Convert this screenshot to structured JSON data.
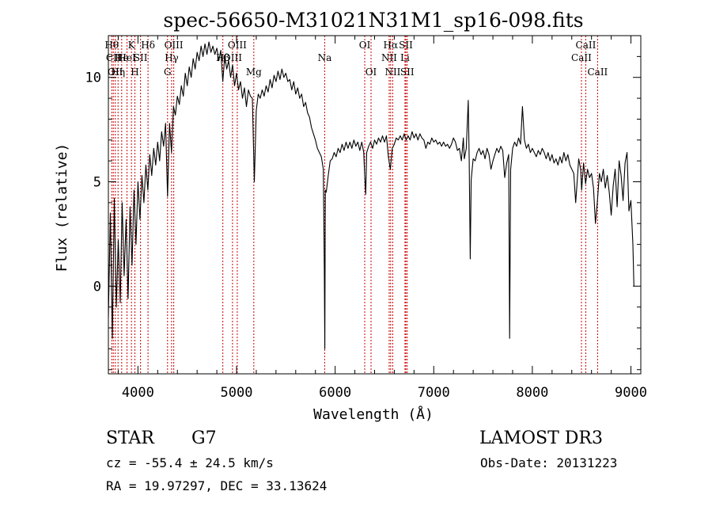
{
  "chart_data": {
    "type": "line",
    "title": "spec-56650-M31021N31M1_sp16-098.fits",
    "xlabel": "Wavelength (Å)",
    "ylabel": "Flux (relative)",
    "xlim": [
      3700,
      9100
    ],
    "ylim": [
      -4.2,
      12
    ],
    "x_ticks": [
      4000,
      5000,
      6000,
      7000,
      8000,
      9000
    ],
    "y_ticks": [
      0,
      5,
      10
    ],
    "x_minor_step": 200,
    "y_minor_step": 1,
    "grid": false,
    "series": [
      {
        "points": [
          [
            3700,
            -1.5
          ],
          [
            3720,
            3.5
          ],
          [
            3740,
            -2.5
          ],
          [
            3760,
            4.2
          ],
          [
            3780,
            -1.0
          ],
          [
            3800,
            2.2
          ],
          [
            3820,
            -0.8
          ],
          [
            3840,
            4.0
          ],
          [
            3860,
            0.5
          ],
          [
            3880,
            3.2
          ],
          [
            3900,
            -0.6
          ],
          [
            3920,
            3.8
          ],
          [
            3940,
            1.0
          ],
          [
            3960,
            4.6
          ],
          [
            3980,
            2.0
          ],
          [
            4000,
            5.0
          ],
          [
            4020,
            3.2
          ],
          [
            4040,
            5.3
          ],
          [
            4060,
            4.0
          ],
          [
            4080,
            5.8
          ],
          [
            4100,
            4.6
          ],
          [
            4120,
            6.3
          ],
          [
            4140,
            5.3
          ],
          [
            4160,
            6.6
          ],
          [
            4180,
            5.8
          ],
          [
            4200,
            6.9
          ],
          [
            4220,
            6.0
          ],
          [
            4240,
            7.4
          ],
          [
            4260,
            6.7
          ],
          [
            4280,
            7.8
          ],
          [
            4300,
            4.3
          ],
          [
            4320,
            7.8
          ],
          [
            4340,
            6.4
          ],
          [
            4360,
            8.6
          ],
          [
            4380,
            8.2
          ],
          [
            4400,
            9.1
          ],
          [
            4420,
            8.7
          ],
          [
            4440,
            9.6
          ],
          [
            4460,
            9.1
          ],
          [
            4480,
            10.2
          ],
          [
            4500,
            9.6
          ],
          [
            4520,
            10.5
          ],
          [
            4540,
            10.0
          ],
          [
            4560,
            10.9
          ],
          [
            4580,
            10.4
          ],
          [
            4600,
            11.2
          ],
          [
            4620,
            10.8
          ],
          [
            4640,
            11.5
          ],
          [
            4660,
            11.0
          ],
          [
            4680,
            11.6
          ],
          [
            4700,
            11.1
          ],
          [
            4720,
            11.7
          ],
          [
            4740,
            11.2
          ],
          [
            4760,
            11.5
          ],
          [
            4780,
            11.1
          ],
          [
            4800,
            11.4
          ],
          [
            4820,
            10.8
          ],
          [
            4840,
            11.3
          ],
          [
            4860,
            9.8
          ],
          [
            4880,
            11.0
          ],
          [
            4900,
            10.4
          ],
          [
            4920,
            10.8
          ],
          [
            4940,
            10.0
          ],
          [
            4960,
            10.6
          ],
          [
            4980,
            9.6
          ],
          [
            5000,
            10.2
          ],
          [
            5020,
            9.4
          ],
          [
            5040,
            9.8
          ],
          [
            5060,
            9.0
          ],
          [
            5080,
            9.5
          ],
          [
            5100,
            8.6
          ],
          [
            5120,
            9.4
          ],
          [
            5140,
            9.1
          ],
          [
            5160,
            9.0
          ],
          [
            5180,
            5.0
          ],
          [
            5200,
            8.4
          ],
          [
            5220,
            9.2
          ],
          [
            5240,
            9.0
          ],
          [
            5260,
            9.4
          ],
          [
            5280,
            9.1
          ],
          [
            5300,
            9.6
          ],
          [
            5320,
            9.3
          ],
          [
            5340,
            9.9
          ],
          [
            5360,
            9.5
          ],
          [
            5380,
            10.1
          ],
          [
            5400,
            9.8
          ],
          [
            5420,
            10.3
          ],
          [
            5440,
            9.9
          ],
          [
            5460,
            10.4
          ],
          [
            5480,
            10.0
          ],
          [
            5500,
            10.2
          ],
          [
            5520,
            9.8
          ],
          [
            5540,
            9.9
          ],
          [
            5560,
            9.4
          ],
          [
            5580,
            9.8
          ],
          [
            5600,
            9.2
          ],
          [
            5620,
            9.5
          ],
          [
            5640,
            9.0
          ],
          [
            5660,
            9.2
          ],
          [
            5680,
            8.6
          ],
          [
            5700,
            8.8
          ],
          [
            5720,
            8.3
          ],
          [
            5740,
            8.1
          ],
          [
            5760,
            7.6
          ],
          [
            5780,
            7.3
          ],
          [
            5800,
            7.0
          ],
          [
            5820,
            6.6
          ],
          [
            5840,
            6.4
          ],
          [
            5860,
            6.2
          ],
          [
            5880,
            5.6
          ],
          [
            5890,
            1.0
          ],
          [
            5895,
            -3.0
          ],
          [
            5900,
            4.6
          ],
          [
            5910,
            4.5
          ],
          [
            5930,
            5.3
          ],
          [
            5950,
            6.0
          ],
          [
            5970,
            6.1
          ],
          [
            5990,
            6.4
          ],
          [
            6010,
            6.2
          ],
          [
            6030,
            6.6
          ],
          [
            6050,
            6.4
          ],
          [
            6070,
            6.8
          ],
          [
            6090,
            6.5
          ],
          [
            6110,
            6.9
          ],
          [
            6130,
            6.6
          ],
          [
            6150,
            6.9
          ],
          [
            6170,
            6.6
          ],
          [
            6190,
            7.0
          ],
          [
            6210,
            6.7
          ],
          [
            6230,
            6.9
          ],
          [
            6250,
            6.5
          ],
          [
            6270,
            6.9
          ],
          [
            6290,
            6.4
          ],
          [
            6300,
            5.3
          ],
          [
            6310,
            4.4
          ],
          [
            6320,
            6.4
          ],
          [
            6340,
            6.7
          ],
          [
            6360,
            6.9
          ],
          [
            6380,
            6.6
          ],
          [
            6400,
            7.0
          ],
          [
            6420,
            6.8
          ],
          [
            6440,
            7.1
          ],
          [
            6460,
            6.9
          ],
          [
            6480,
            7.2
          ],
          [
            6500,
            6.9
          ],
          [
            6520,
            7.2
          ],
          [
            6540,
            6.2
          ],
          [
            6560,
            5.6
          ],
          [
            6580,
            6.6
          ],
          [
            6600,
            6.8
          ],
          [
            6620,
            7.1
          ],
          [
            6640,
            7.0
          ],
          [
            6660,
            7.2
          ],
          [
            6680,
            7.0
          ],
          [
            6700,
            7.3
          ],
          [
            6720,
            7.0
          ],
          [
            6740,
            7.2
          ],
          [
            6760,
            7.0
          ],
          [
            6780,
            7.4
          ],
          [
            6800,
            7.1
          ],
          [
            6820,
            7.3
          ],
          [
            6840,
            7.0
          ],
          [
            6860,
            7.3
          ],
          [
            6880,
            7.1
          ],
          [
            6900,
            7.0
          ],
          [
            6920,
            6.6
          ],
          [
            6940,
            6.9
          ],
          [
            6960,
            6.8
          ],
          [
            6980,
            7.1
          ],
          [
            7000,
            6.9
          ],
          [
            7020,
            7.0
          ],
          [
            7040,
            6.8
          ],
          [
            7060,
            6.9
          ],
          [
            7080,
            6.7
          ],
          [
            7100,
            6.9
          ],
          [
            7120,
            6.7
          ],
          [
            7140,
            6.8
          ],
          [
            7160,
            6.6
          ],
          [
            7180,
            6.8
          ],
          [
            7200,
            7.1
          ],
          [
            7220,
            6.9
          ],
          [
            7240,
            6.5
          ],
          [
            7260,
            6.6
          ],
          [
            7280,
            6.0
          ],
          [
            7300,
            7.1
          ],
          [
            7310,
            6.1
          ],
          [
            7330,
            6.6
          ],
          [
            7350,
            8.9
          ],
          [
            7360,
            6.0
          ],
          [
            7370,
            1.3
          ],
          [
            7380,
            5.1
          ],
          [
            7400,
            6.1
          ],
          [
            7420,
            6.0
          ],
          [
            7440,
            6.4
          ],
          [
            7460,
            6.6
          ],
          [
            7480,
            6.3
          ],
          [
            7500,
            6.5
          ],
          [
            7520,
            6.1
          ],
          [
            7540,
            6.6
          ],
          [
            7560,
            6.3
          ],
          [
            7580,
            5.6
          ],
          [
            7600,
            6.0
          ],
          [
            7620,
            6.3
          ],
          [
            7640,
            6.6
          ],
          [
            7660,
            6.4
          ],
          [
            7680,
            6.7
          ],
          [
            7700,
            6.5
          ],
          [
            7720,
            5.2
          ],
          [
            7740,
            5.9
          ],
          [
            7760,
            6.3
          ],
          [
            7770,
            -2.5
          ],
          [
            7780,
            5.6
          ],
          [
            7800,
            6.6
          ],
          [
            7820,
            6.9
          ],
          [
            7840,
            6.7
          ],
          [
            7860,
            7.1
          ],
          [
            7880,
            6.8
          ],
          [
            7900,
            8.6
          ],
          [
            7920,
            7.0
          ],
          [
            7940,
            6.6
          ],
          [
            7960,
            6.8
          ],
          [
            7980,
            6.4
          ],
          [
            8000,
            6.6
          ],
          [
            8020,
            6.4
          ],
          [
            8040,
            6.2
          ],
          [
            8060,
            6.5
          ],
          [
            8080,
            6.3
          ],
          [
            8100,
            6.6
          ],
          [
            8120,
            6.4
          ],
          [
            8140,
            6.1
          ],
          [
            8160,
            6.4
          ],
          [
            8180,
            6.0
          ],
          [
            8200,
            6.3
          ],
          [
            8220,
            5.9
          ],
          [
            8240,
            6.1
          ],
          [
            8260,
            5.8
          ],
          [
            8280,
            6.2
          ],
          [
            8300,
            5.9
          ],
          [
            8320,
            6.4
          ],
          [
            8340,
            6.0
          ],
          [
            8360,
            6.3
          ],
          [
            8380,
            5.8
          ],
          [
            8400,
            5.6
          ],
          [
            8420,
            5.4
          ],
          [
            8440,
            4.0
          ],
          [
            8450,
            4.7
          ],
          [
            8470,
            6.1
          ],
          [
            8490,
            5.6
          ],
          [
            8500,
            4.6
          ],
          [
            8520,
            5.9
          ],
          [
            8540,
            4.9
          ],
          [
            8560,
            5.6
          ],
          [
            8580,
            5.2
          ],
          [
            8600,
            5.4
          ],
          [
            8620,
            4.7
          ],
          [
            8640,
            3.0
          ],
          [
            8660,
            4.1
          ],
          [
            8680,
            5.4
          ],
          [
            8700,
            5.0
          ],
          [
            8720,
            5.6
          ],
          [
            8740,
            4.7
          ],
          [
            8760,
            5.3
          ],
          [
            8780,
            4.5
          ],
          [
            8800,
            3.4
          ],
          [
            8820,
            4.8
          ],
          [
            8840,
            5.6
          ],
          [
            8860,
            3.8
          ],
          [
            8880,
            6.0
          ],
          [
            8900,
            5.3
          ],
          [
            8920,
            4.1
          ],
          [
            8940,
            5.9
          ],
          [
            8960,
            6.4
          ],
          [
            8980,
            3.6
          ],
          [
            9000,
            4.1
          ],
          [
            9020,
            2.0
          ],
          [
            9030,
            0.0
          ]
        ]
      }
    ],
    "lines": [
      {
        "wl": 3734,
        "top": "Hθ",
        "mid": "",
        "low": ""
      },
      {
        "wl": 3750,
        "top": "",
        "mid": "CII",
        "low": ""
      },
      {
        "wl": 3770,
        "top": "",
        "mid": "",
        "low": "OII"
      },
      {
        "wl": 3798,
        "top": "",
        "mid": "",
        "low": "Hη"
      },
      {
        "wl": 3835,
        "top": "",
        "mid": "He",
        "low": ""
      },
      {
        "wl": 3889,
        "top": "",
        "mid": "HeI",
        "low": ""
      },
      {
        "wl": 3934,
        "top": "K",
        "mid": "",
        "low": ""
      },
      {
        "wl": 3969,
        "top": "",
        "mid": "",
        "low": "H"
      },
      {
        "wl": 4026,
        "top": "",
        "mid": "SII",
        "low": ""
      },
      {
        "wl": 4102,
        "top": "Hδ",
        "mid": "",
        "low": ""
      },
      {
        "wl": 4300,
        "top": "",
        "mid": "",
        "low": "G"
      },
      {
        "wl": 4341,
        "top": "",
        "mid": "Hγ",
        "low": ""
      },
      {
        "wl": 4363,
        "top": "OIII",
        "mid": "",
        "low": ""
      },
      {
        "wl": 4861,
        "top": "",
        "mid": "Hβ",
        "low": ""
      },
      {
        "wl": 4959,
        "top": "",
        "mid": "OIII",
        "low": ""
      },
      {
        "wl": 5007,
        "top": "OIII",
        "mid": "",
        "low": ""
      },
      {
        "wl": 5175,
        "top": "",
        "mid": "",
        "low": "Mg"
      },
      {
        "wl": 5894,
        "top": "",
        "mid": "Na",
        "low": ""
      },
      {
        "wl": 6300,
        "top": "OI",
        "mid": "",
        "low": ""
      },
      {
        "wl": 6364,
        "top": "",
        "mid": "",
        "low": "OI"
      },
      {
        "wl": 6548,
        "top": "",
        "mid": "NII",
        "low": ""
      },
      {
        "wl": 6563,
        "top": "Hα",
        "mid": "",
        "low": ""
      },
      {
        "wl": 6584,
        "top": "",
        "mid": "",
        "low": "NII"
      },
      {
        "wl": 6708,
        "top": "",
        "mid": "Li",
        "low": ""
      },
      {
        "wl": 6717,
        "top": "SII",
        "mid": "",
        "low": ""
      },
      {
        "wl": 6731,
        "top": "",
        "mid": "",
        "low": "SII"
      },
      {
        "wl": 8498,
        "top": "",
        "mid": "CaII",
        "low": ""
      },
      {
        "wl": 8542,
        "top": "CaII",
        "mid": "",
        "low": ""
      },
      {
        "wl": 8662,
        "top": "",
        "mid": "",
        "low": "CaII"
      }
    ],
    "line_color": "#cc0000",
    "spectrum_color": "#000000"
  },
  "info": {
    "object_class": "STAR",
    "subclass": "G7",
    "survey": "LAMOST DR3",
    "velocity": "cz = -55.4 ± 24.5 km/s",
    "obs_date": "Obs-Date: 20131223",
    "coords": "RA =  19.97297, DEC =  33.13624"
  }
}
